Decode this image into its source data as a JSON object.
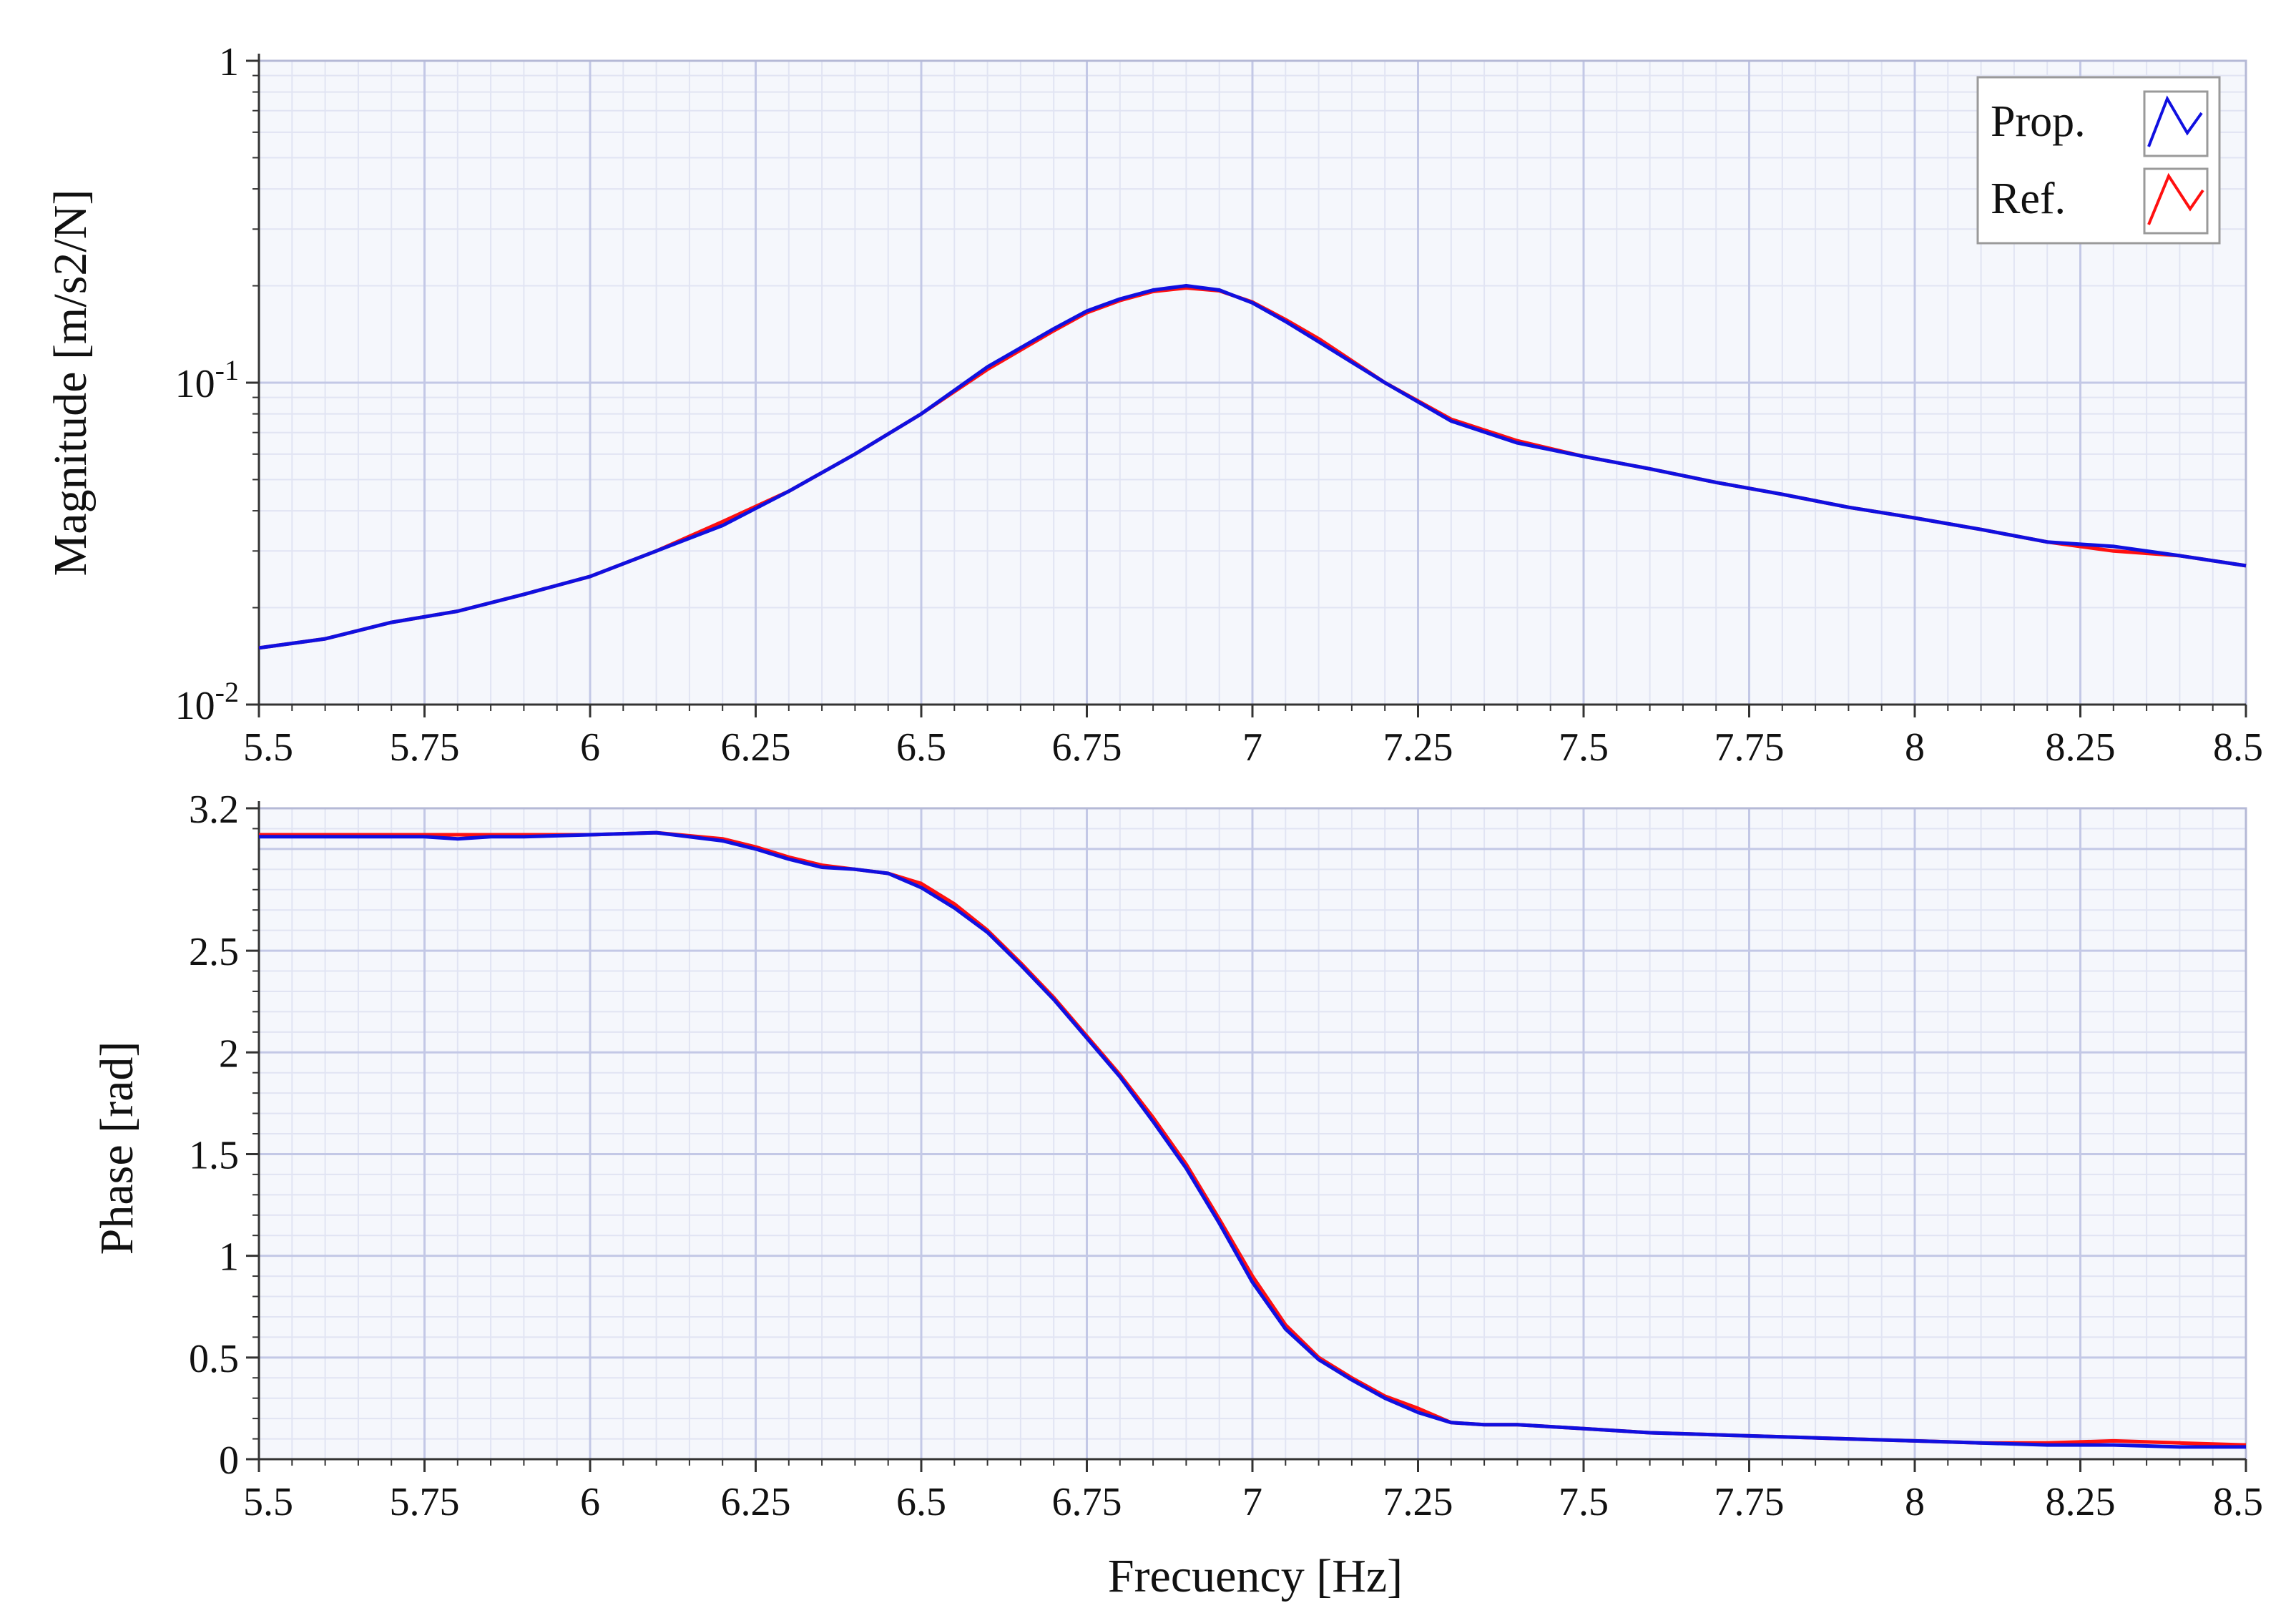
{
  "colors": {
    "background": "#ffffff",
    "plot_background": "#f5f7fc",
    "major_grid": "#c3c8e6",
    "minor_grid": "#e1e4f3",
    "prop": "#1010e0",
    "ref": "#ff1010",
    "axis": "#333333"
  },
  "legend": {
    "items": [
      {
        "label": "Prop.",
        "color": "#1010e0",
        "icon": "blue-line-glyph"
      },
      {
        "label": "Ref.",
        "color": "#ff1010",
        "icon": "red-line-glyph"
      }
    ],
    "placement": "top-right"
  },
  "chart_data": [
    {
      "type": "line",
      "ylabel": "Magnitude [m/s2/N]",
      "xlabel": "",
      "xlim": [
        5.5,
        8.5
      ],
      "ylim": [
        0.01,
        1
      ],
      "yscale": "log",
      "grid": true,
      "x_ticks": [
        "5.5",
        "5.75",
        "6",
        "6.25",
        "6.5",
        "6.75",
        "7",
        "7.25",
        "7.5",
        "7.75",
        "8",
        "8.25",
        "8.5"
      ],
      "y_ticks": [
        {
          "base": "10",
          "exp": "-2",
          "value": 0.01
        },
        {
          "base": "10",
          "exp": "-1",
          "value": 0.1
        },
        {
          "base": "1",
          "exp": "",
          "value": 1
        }
      ],
      "series": [
        {
          "name": "Ref.",
          "color": "#ff1010",
          "x": [
            5.5,
            5.6,
            5.7,
            5.8,
            5.9,
            6.0,
            6.1,
            6.2,
            6.3,
            6.4,
            6.5,
            6.6,
            6.7,
            6.75,
            6.8,
            6.85,
            6.9,
            6.95,
            7.0,
            7.05,
            7.1,
            7.2,
            7.3,
            7.4,
            7.5,
            7.6,
            7.7,
            7.8,
            7.9,
            8.0,
            8.1,
            8.2,
            8.3,
            8.4,
            8.5
          ],
          "values": [
            0.015,
            0.016,
            0.018,
            0.0195,
            0.022,
            0.025,
            0.03,
            0.037,
            0.046,
            0.06,
            0.08,
            0.11,
            0.145,
            0.165,
            0.18,
            0.192,
            0.197,
            0.193,
            0.178,
            0.157,
            0.137,
            0.1,
            0.077,
            0.066,
            0.059,
            0.054,
            0.049,
            0.045,
            0.041,
            0.038,
            0.035,
            0.032,
            0.03,
            0.029,
            0.027
          ]
        },
        {
          "name": "Prop.",
          "color": "#1010e0",
          "x": [
            5.5,
            5.6,
            5.7,
            5.8,
            5.9,
            6.0,
            6.1,
            6.2,
            6.3,
            6.4,
            6.5,
            6.6,
            6.7,
            6.75,
            6.8,
            6.85,
            6.9,
            6.95,
            7.0,
            7.05,
            7.1,
            7.2,
            7.3,
            7.4,
            7.5,
            7.6,
            7.7,
            7.8,
            7.9,
            8.0,
            8.1,
            8.2,
            8.3,
            8.4,
            8.5
          ],
          "values": [
            0.015,
            0.016,
            0.018,
            0.0195,
            0.022,
            0.025,
            0.03,
            0.036,
            0.046,
            0.06,
            0.08,
            0.112,
            0.147,
            0.167,
            0.182,
            0.194,
            0.2,
            0.194,
            0.177,
            0.155,
            0.134,
            0.1,
            0.076,
            0.065,
            0.059,
            0.054,
            0.049,
            0.045,
            0.041,
            0.038,
            0.035,
            0.032,
            0.031,
            0.029,
            0.027
          ]
        }
      ]
    },
    {
      "type": "line",
      "ylabel": "Phase [rad]",
      "xlabel": "Frecuency [Hz]",
      "xlim": [
        5.5,
        8.5
      ],
      "ylim": [
        0,
        3.2
      ],
      "yscale": "linear",
      "grid": true,
      "x_ticks": [
        "5.5",
        "5.75",
        "6",
        "6.25",
        "6.5",
        "6.75",
        "7",
        "7.25",
        "7.5",
        "7.75",
        "8",
        "8.25",
        "8.5"
      ],
      "y_ticks": [
        {
          "base": "0",
          "exp": "",
          "value": 0
        },
        {
          "base": "0.5",
          "exp": "",
          "value": 0.5
        },
        {
          "base": "1",
          "exp": "",
          "value": 1
        },
        {
          "base": "1.5",
          "exp": "",
          "value": 1.5
        },
        {
          "base": "2",
          "exp": "",
          "value": 2
        },
        {
          "base": "2.5",
          "exp": "",
          "value": 2.5
        },
        {
          "base": "3.2",
          "exp": "",
          "value": 3.2
        }
      ],
      "series": [
        {
          "name": "Ref.",
          "color": "#ff1010",
          "x": [
            5.5,
            5.6,
            5.7,
            5.8,
            5.9,
            6.0,
            6.1,
            6.2,
            6.25,
            6.3,
            6.35,
            6.4,
            6.45,
            6.5,
            6.55,
            6.6,
            6.65,
            6.7,
            6.75,
            6.8,
            6.85,
            6.9,
            6.95,
            7.0,
            7.05,
            7.1,
            7.15,
            7.2,
            7.25,
            7.3,
            7.35,
            7.4,
            7.5,
            7.6,
            7.7,
            7.8,
            7.9,
            8.0,
            8.1,
            8.2,
            8.3,
            8.4,
            8.5
          ],
          "values": [
            3.07,
            3.07,
            3.07,
            3.07,
            3.07,
            3.07,
            3.08,
            3.05,
            3.01,
            2.96,
            2.92,
            2.9,
            2.88,
            2.83,
            2.73,
            2.6,
            2.44,
            2.27,
            2.08,
            1.89,
            1.68,
            1.45,
            1.18,
            0.9,
            0.66,
            0.5,
            0.4,
            0.31,
            0.25,
            0.18,
            0.17,
            0.17,
            0.15,
            0.13,
            0.12,
            0.11,
            0.1,
            0.09,
            0.08,
            0.08,
            0.09,
            0.08,
            0.07
          ]
        },
        {
          "name": "Prop.",
          "color": "#1010e0",
          "x": [
            5.5,
            5.6,
            5.7,
            5.75,
            5.8,
            5.85,
            5.9,
            6.0,
            6.1,
            6.2,
            6.25,
            6.3,
            6.35,
            6.4,
            6.45,
            6.5,
            6.55,
            6.6,
            6.65,
            6.7,
            6.75,
            6.8,
            6.85,
            6.9,
            6.95,
            7.0,
            7.05,
            7.1,
            7.15,
            7.2,
            7.25,
            7.3,
            7.35,
            7.4,
            7.5,
            7.6,
            7.7,
            7.8,
            7.9,
            8.0,
            8.1,
            8.2,
            8.3,
            8.4,
            8.5
          ],
          "values": [
            3.06,
            3.06,
            3.06,
            3.06,
            3.05,
            3.06,
            3.06,
            3.07,
            3.08,
            3.04,
            3.0,
            2.95,
            2.91,
            2.9,
            2.88,
            2.81,
            2.71,
            2.59,
            2.43,
            2.26,
            2.07,
            1.88,
            1.66,
            1.43,
            1.16,
            0.87,
            0.64,
            0.49,
            0.39,
            0.3,
            0.23,
            0.18,
            0.17,
            0.17,
            0.15,
            0.13,
            0.12,
            0.11,
            0.1,
            0.09,
            0.08,
            0.07,
            0.07,
            0.06,
            0.06
          ]
        }
      ]
    }
  ]
}
